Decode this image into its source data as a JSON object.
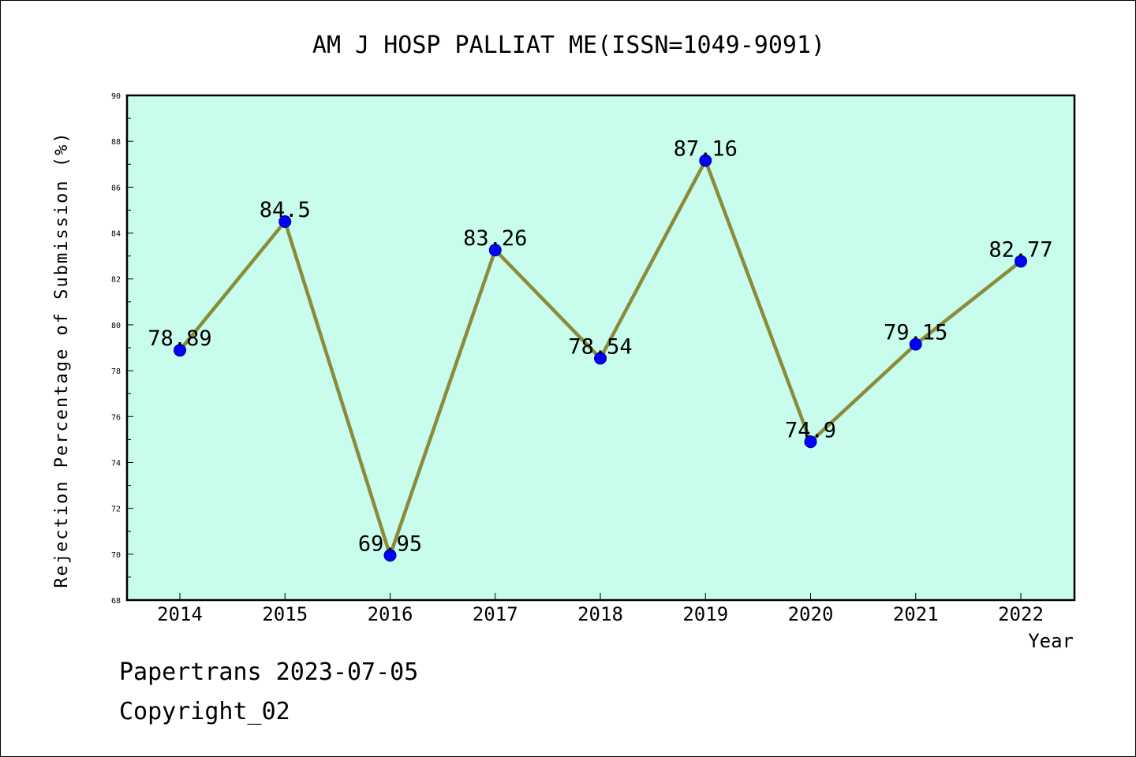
{
  "chart_data": {
    "type": "line",
    "title": "AM J HOSP PALLIAT ME(ISSN=1049-9091)",
    "xlabel": "Year",
    "ylabel": "Rejection Percentage of Submission (%)",
    "categories": [
      "2014",
      "2015",
      "2016",
      "2017",
      "2018",
      "2019",
      "2020",
      "2021",
      "2022"
    ],
    "series": [
      {
        "values": [
          78.89,
          84.5,
          69.95,
          83.26,
          78.54,
          87.16,
          74.9,
          79.15,
          82.77
        ]
      }
    ],
    "data_labels": [
      "78.89",
      "84.5",
      "69.95",
      "83.26",
      "78.54",
      "87.16",
      "74.9",
      "79.15",
      "82.77"
    ],
    "ylim": [
      68,
      90
    ],
    "yticks": [
      "68",
      "70",
      "72",
      "74",
      "76",
      "78",
      "80",
      "82",
      "84",
      "86",
      "88",
      "90"
    ],
    "grid": false,
    "colors": {
      "plot_background": "#c8fcec",
      "line": "#8b8b3a",
      "marker": "#0000ff",
      "marker_edge": "#00008b"
    }
  },
  "footer": {
    "date_line": "Papertrans 2023-07-05",
    "copyright": "Copyright_02"
  }
}
